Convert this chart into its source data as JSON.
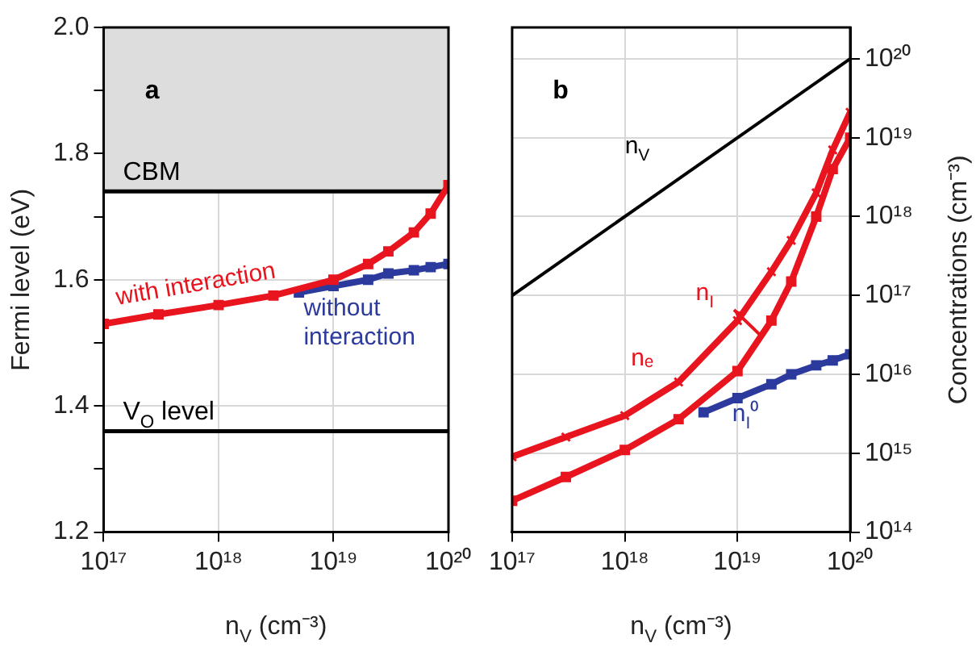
{
  "chart_data": [
    {
      "type": "line",
      "xlabel": "n$_{V}$ (cm⁻³)",
      "ylabel": "Fermi level (eV)",
      "log": "x",
      "grid": true,
      "legend": false,
      "xlim": [
        1e+17,
        1e+20
      ],
      "xticks": [
        {
          "value": 1e+17,
          "label": "10¹⁷"
        },
        {
          "value": 1e+18,
          "label": "10¹⁸"
        },
        {
          "value": 1e+19,
          "label": "10¹⁹"
        },
        {
          "value": 1e+20,
          "label": "10²⁰"
        }
      ],
      "ylim": [
        1.2,
        2.0
      ],
      "yticks": [
        1.2,
        {
          "value": 1.3,
          "label": null
        },
        1.4,
        {
          "value": 1.5,
          "label": null
        },
        1.6,
        {
          "value": 1.7,
          "label": null
        },
        1.8,
        {
          "value": 1.9,
          "label": null
        },
        {
          "value": 2.0,
          "label": "2.0"
        }
      ],
      "ref_lines": [
        {
          "axis": "y",
          "value": 1.74,
          "label": "CBM",
          "color": "#000000"
        },
        {
          "axis": "y",
          "value": 1.36,
          "label": "V$_{O}$ level",
          "color": "#000000"
        }
      ],
      "bands": [
        {
          "axis": "y",
          "from": 1.74,
          "to": 2.0,
          "color": "#dddddd"
        }
      ],
      "annotations": [
        "a"
      ],
      "series": [
        {
          "name": "with interaction",
          "color": "#e8141e",
          "marker": "square",
          "x": [
            1e+17,
            3e+17,
            1e+18,
            3e+18,
            1e+19,
            2e+19,
            3e+19,
            5e+19,
            7e+19,
            1e+20
          ],
          "values": [
            1.53,
            1.545,
            1.56,
            1.575,
            1.6,
            1.625,
            1.645,
            1.675,
            1.705,
            1.75
          ]
        },
        {
          "name": "without interaction",
          "color": "#2b3a9c",
          "marker": "square",
          "x": [
            5e+18,
            1e+19,
            2e+19,
            3e+19,
            5e+19,
            7e+19,
            1e+20
          ],
          "values": [
            1.58,
            1.59,
            1.6,
            1.61,
            1.615,
            1.62,
            1.625
          ]
        }
      ]
    },
    {
      "type": "line",
      "xlabel": "n$_{V}$ (cm⁻³)",
      "ylabel": "Concentrations (cm⁻³)",
      "log": "xy",
      "grid": true,
      "legend": false,
      "xlim": [
        1e+17,
        1e+20
      ],
      "xticks": [
        {
          "value": 1e+17,
          "label": "10¹⁷"
        },
        {
          "value": 1e+18,
          "label": "10¹⁸"
        },
        {
          "value": 1e+19,
          "label": "10¹⁹"
        },
        {
          "value": 1e+20,
          "label": "10²⁰"
        }
      ],
      "ylim": [
        100000000000000.0,
        2.5e+20
      ],
      "yticks": [
        {
          "value": 100000000000000.0,
          "label": "10¹⁴"
        },
        {
          "value": 1000000000000000.0,
          "label": "10¹⁵"
        },
        {
          "value": 1e+16,
          "label": "10¹⁶"
        },
        {
          "value": 1e+17,
          "label": "10¹⁷"
        },
        {
          "value": 1e+18,
          "label": "10¹⁸"
        },
        {
          "value": 1e+19,
          "label": "10¹⁹"
        },
        {
          "value": 1e+20,
          "label": "10²⁰"
        }
      ],
      "annotations": [
        "b"
      ],
      "series": [
        {
          "name": "n$_{V}$",
          "color": "#000000",
          "marker": "none",
          "x": [
            1e+17,
            1e+20
          ],
          "values": [
            1e+17,
            1e+20
          ]
        },
        {
          "name": "nₑ",
          "color": "#e8141e",
          "marker": "cross",
          "x": [
            1e+17,
            3e+17,
            1e+18,
            3e+18,
            1e+19,
            2e+19,
            3e+19,
            5e+19,
            7e+19,
            1e+20
          ],
          "values": [
            900000000000000.0,
            1600000000000000.0,
            3000000000000000.0,
            8000000000000000.0,
            4.8e+16,
            2e+17,
            5e+17,
            2e+18,
            7e+18,
            2.1e+19
          ]
        },
        {
          "name": "n$_{I}$",
          "color": "#e8141e",
          "marker": "square",
          "x": [
            1e+17,
            3e+17,
            1e+18,
            3e+18,
            1e+19,
            2e+19,
            3e+19,
            5e+19,
            7e+19,
            1e+20
          ],
          "values": [
            250000000000000.0,
            500000000000000.0,
            1100000000000000.0,
            2700000000000000.0,
            1.1e+16,
            4.8e+16,
            1.5e+17,
            1e+18,
            4e+18,
            1e+19
          ]
        },
        {
          "name": "n$_{I}$⁰",
          "color": "#2b3a9c",
          "marker": "square",
          "x": [
            5e+18,
            1e+19,
            2e+19,
            3e+19,
            5e+19,
            7e+19,
            1e+20
          ],
          "values": [
            3300000000000000.0,
            5000000000000000.0,
            7500000000000000.0,
            1e+16,
            1.3e+16,
            1.5e+16,
            1.8e+16
          ]
        }
      ]
    }
  ]
}
